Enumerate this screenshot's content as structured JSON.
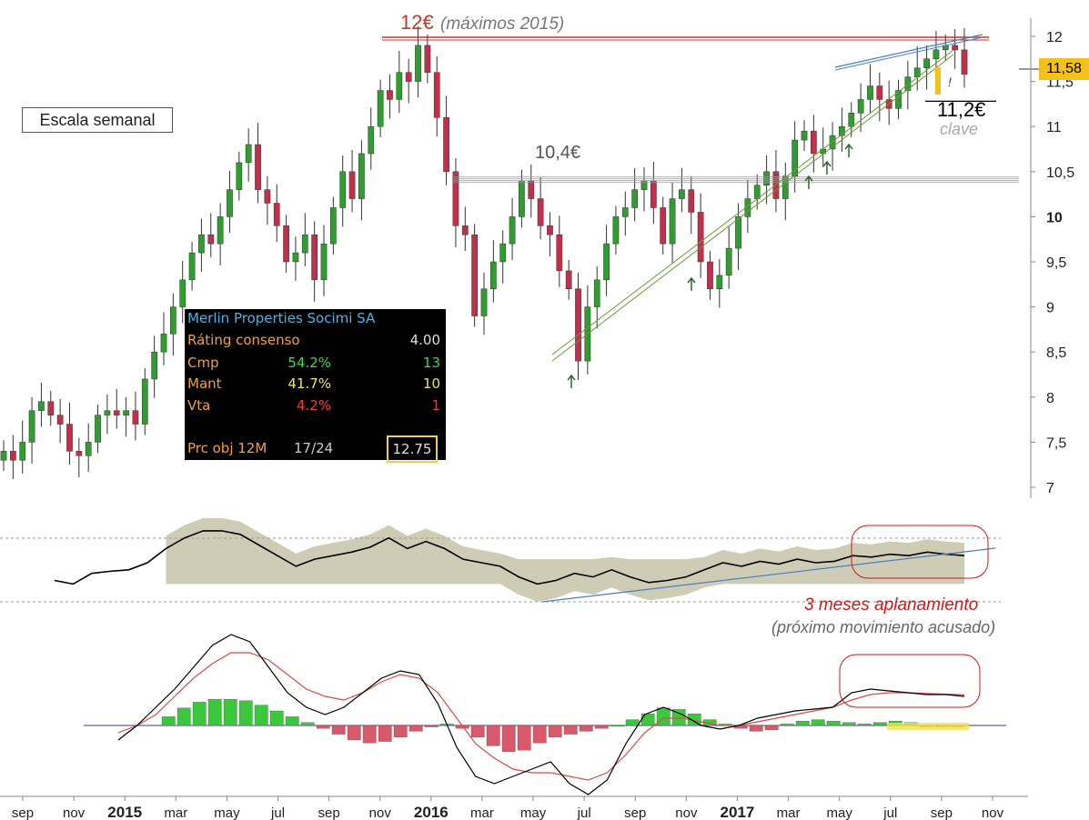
{
  "chart_data": [
    {
      "type": "line",
      "panel": "price",
      "style": "candlestick",
      "x_tick_labels": [
        "sep",
        "nov",
        "2015",
        "mar",
        "may",
        "jul",
        "sep",
        "nov",
        "2016",
        "mar",
        "may",
        "jul",
        "sep",
        "nov",
        "2017",
        "mar",
        "may",
        "jul",
        "sep",
        "nov"
      ],
      "y_ticks": [
        "12",
        "11,5",
        "11",
        "10,5",
        "10",
        "9,5",
        "9",
        "8,5",
        "8",
        "7,5",
        "7"
      ],
      "ylim": [
        7,
        12
      ],
      "series": [
        {
          "values": [
            7.4,
            7.3,
            7.5,
            7.85,
            7.95,
            7.8,
            7.7,
            7.4,
            7.35,
            7.5,
            7.8,
            7.85,
            7.8,
            7.85,
            7.7,
            8.2,
            8.5,
            8.7,
            9.0,
            9.3,
            9.6,
            9.8,
            9.7,
            10.0,
            10.3,
            10.6,
            10.8,
            10.3,
            10.15,
            9.9,
            9.5,
            9.6,
            9.8,
            9.3,
            9.7,
            10.1,
            10.5,
            10.2,
            10.7,
            11.0,
            11.4,
            11.3,
            11.6,
            11.5,
            11.9,
            11.6,
            11.1,
            10.5,
            9.9,
            9.8,
            8.9,
            9.2,
            9.5,
            9.7,
            10.0,
            10.4,
            10.2,
            9.9,
            9.8,
            9.4,
            9.2,
            8.4,
            9.0,
            9.3,
            9.7,
            10.0,
            10.1,
            10.3,
            10.4,
            10.1,
            9.7,
            10.2,
            10.3,
            10.05,
            9.5,
            9.2,
            9.35,
            9.65,
            10.0,
            10.2,
            10.35,
            10.5,
            10.2,
            10.45,
            10.85,
            10.95,
            10.7,
            10.75,
            10.9,
            11.0,
            11.15,
            11.3,
            11.45,
            11.3,
            11.2,
            11.4,
            11.55,
            11.65,
            11.75,
            11.85,
            11.9,
            11.85,
            11.58
          ]
        }
      ],
      "y_axis_position": "right",
      "current_price_label": "11,58",
      "annotations": {
        "max_level_value": "12€",
        "max_level_note": "(máximos 2015)",
        "support_level": "10,4€",
        "key_level": "11,2€",
        "key_note": "clave",
        "warning_mark": "!",
        "scale_note": "Escala semanal"
      },
      "reference_levels": [
        12.0,
        10.4,
        11.2
      ],
      "trendline_support_touches": [
        "jul",
        "nov",
        "mar",
        "may",
        "may"
      ]
    },
    {
      "type": "area",
      "panel": "relative-strength",
      "series": [
        {
          "values": [
            0.25,
            0.2,
            0.35,
            0.38,
            0.4,
            0.5,
            0.7,
            0.85,
            0.95,
            0.95,
            0.9,
            0.75,
            0.6,
            0.45,
            0.55,
            0.6,
            0.65,
            0.72,
            0.85,
            0.7,
            0.8,
            0.7,
            0.55,
            0.5,
            0.45,
            0.3,
            0.2,
            0.25,
            0.35,
            0.3,
            0.4,
            0.3,
            0.22,
            0.25,
            0.3,
            0.4,
            0.5,
            0.45,
            0.52,
            0.48,
            0.55,
            0.5,
            0.52,
            0.6,
            0.58,
            0.62,
            0.6,
            0.65,
            0.62,
            0.6
          ],
          "color": "#000000"
        }
      ],
      "band_color": "#a8a37a",
      "highlight_label": "3 meses aplanamiento",
      "highlight_note": "(próximo movimiento acusado)"
    },
    {
      "type": "bar",
      "panel": "macd",
      "histogram_values": [
        0.3,
        0.6,
        0.8,
        0.9,
        0.9,
        0.85,
        0.7,
        0.5,
        0.3,
        0.1,
        -0.1,
        -0.3,
        -0.5,
        -0.6,
        -0.55,
        -0.4,
        -0.2,
        -0.05,
        0.05,
        -0.1,
        -0.4,
        -0.7,
        -0.9,
        -0.85,
        -0.6,
        -0.4,
        -0.3,
        -0.2,
        -0.1,
        0.0,
        0.2,
        0.4,
        0.6,
        0.55,
        0.4,
        0.2,
        0.05,
        -0.1,
        -0.2,
        -0.15,
        0.05,
        0.15,
        0.2,
        0.15,
        0.1,
        0.05,
        0.1,
        0.15,
        0.1,
        -0.05,
        -0.05,
        -0.05
      ],
      "macd_values": [
        -0.4,
        0.0,
        0.5,
        1.0,
        1.6,
        2.2,
        2.5,
        2.3,
        1.6,
        0.9,
        0.5,
        0.3,
        0.5,
        0.9,
        1.3,
        1.5,
        1.4,
        0.6,
        -0.6,
        -1.4,
        -1.6,
        -1.4,
        -1.2,
        -1.0,
        -1.6,
        -1.9,
        -1.5,
        -0.5,
        0.3,
        0.5,
        0.3,
        0.0,
        -0.1,
        0.0,
        0.2,
        0.3,
        0.4,
        0.45,
        0.5,
        0.9,
        1.0,
        0.95,
        0.9,
        0.85,
        0.85,
        0.8
      ],
      "signal_values": [
        -0.2,
        0.0,
        0.3,
        0.8,
        1.3,
        1.7,
        2.0,
        2.0,
        1.8,
        1.4,
        1.0,
        0.8,
        0.7,
        0.9,
        1.2,
        1.4,
        1.3,
        0.9,
        0.2,
        -0.5,
        -0.9,
        -1.2,
        -1.3,
        -1.3,
        -1.4,
        -1.5,
        -1.3,
        -0.8,
        -0.2,
        0.2,
        0.2,
        0.1,
        0.0,
        0.0,
        0.1,
        0.2,
        0.3,
        0.4,
        0.5,
        0.7,
        0.85,
        0.9,
        0.9,
        0.88,
        0.86,
        0.84
      ]
    }
  ],
  "rating_panel": {
    "title": "Merlin Properties Socimi SA",
    "consensus_label": "Ráting consenso",
    "consensus_value": "4.00",
    "rows": [
      {
        "label": "Cmp",
        "pct": "54.2%",
        "count": "13",
        "color": "#3ddc3d"
      },
      {
        "label": "Mant",
        "pct": "41.7%",
        "count": "10",
        "color": "#e8e27a"
      },
      {
        "label": "Vta",
        "pct": "4.2%",
        "count": "1",
        "color": "#ff3a3a"
      }
    ],
    "target_label": "Prc obj 12M",
    "target_date": "17/24",
    "target_value": "12.75"
  },
  "colors": {
    "up_candle": "#2e9e2e",
    "down_candle": "#c0304a",
    "resistance": "#c0392b",
    "trendline": "#4a7fc0",
    "rs_band": "#a8a37a",
    "price_tag": "#f2c21a"
  }
}
